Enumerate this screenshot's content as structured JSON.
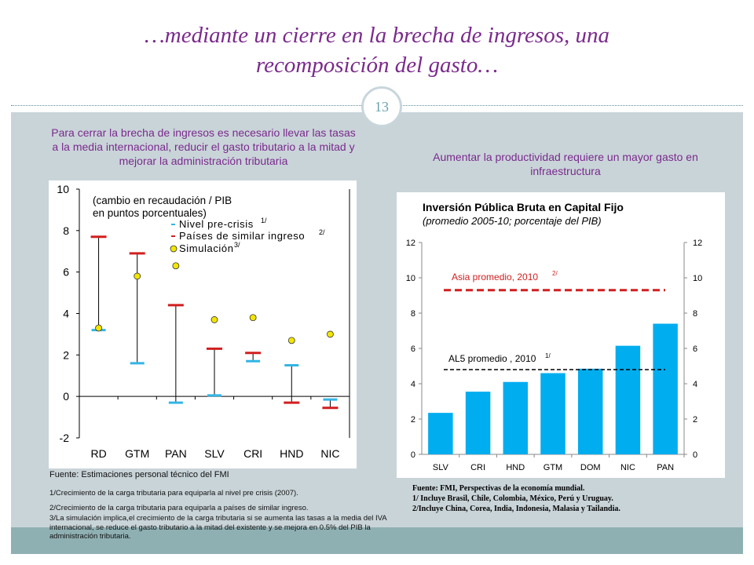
{
  "slide": {
    "title_line1": "…mediante un cierre en la brecha de ingresos, una",
    "title_line2": "recomposición del gasto…",
    "page_number": "13"
  },
  "left": {
    "subtitle": "Para cerrar la brecha de ingresos es necesario llevar las tasas a la media internacional, reducir el gasto tributario a la mitad y mejorar la administración tributaria",
    "source": "Fuente: Estimaciones personal técnico del FMI",
    "notes": [
      "1/Crecimiento de la carga tributaria para equiparla al nivel pre crisis (2007).",
      "2/Crecimiento de la carga tributaria para equiparla a países de similar ingreso.",
      "3/La simulación implica,el crecimiento de la carga tributaria si se aumenta las tasas a la media del IVA internacional, se reduce el gasto tributario a la mitad del existente y se mejora en 0.5% del PIB la administración tributaria."
    ]
  },
  "right": {
    "subtitle": "Aumentar la productividad requiere un mayor gasto en infraestructura",
    "source_lines": [
      "Fuente: FMI, Perspectivas de la economía mundial.",
      "1/ Incluye Brasil, Chile, Colombia, México, Perú y Uruguay.",
      "2/Incluye China, Corea, India, Indonesia, Malasia y Tailandia."
    ]
  },
  "colors": {
    "title": "#7a2a8c",
    "pre_crisis": "#33b5e5",
    "similar_income": "#d11f1f",
    "simulation": "#f2e500",
    "bar": "#00adef",
    "asia_line": "#d11f1f",
    "al5_line": "#000000"
  },
  "chart_data": [
    {
      "type": "scatter",
      "title": "(cambio en recaudación / PIB en puntos porcentuales)",
      "categories": [
        "RD",
        "GTM",
        "PAN",
        "SLV",
        "CRI",
        "HND",
        "NIC"
      ],
      "ylim": [
        -2,
        10
      ],
      "yticks": [
        "10",
        "8",
        "6",
        "4",
        "2",
        "0",
        "-2"
      ],
      "legend_position": "top-right",
      "series": [
        {
          "name": "Nivel pre-crisis",
          "note": "1/",
          "values": [
            3.2,
            1.6,
            -0.3,
            0.05,
            1.7,
            1.5,
            -0.15
          ]
        },
        {
          "name": "Países de similar ingreso",
          "note": "2/",
          "values": [
            7.7,
            6.9,
            4.4,
            2.3,
            2.1,
            -0.3,
            -0.55
          ]
        },
        {
          "name": "Simulación",
          "note": "3/",
          "values": [
            3.3,
            5.8,
            6.3,
            3.7,
            3.8,
            2.7,
            3.0
          ]
        }
      ]
    },
    {
      "type": "bar",
      "title": "Inversión Pública Bruta en Capital Fijo",
      "subtitle": "(promedio 2005-10; porcentaje del PIB)",
      "categories": [
        "SLV",
        "CRI",
        "HND",
        "GTM",
        "DOM",
        "NIC",
        "PAN"
      ],
      "values": [
        2.35,
        3.55,
        4.1,
        4.6,
        4.85,
        6.15,
        7.4
      ],
      "ylim": [
        0,
        12
      ],
      "yticks": [
        "12",
        "10",
        "8",
        "6",
        "4",
        "2",
        "0"
      ],
      "reference_lines": [
        {
          "label": "Asia promedio, 2010",
          "note": "2/",
          "value": 9.3
        },
        {
          "label": "AL5 promedio , 2010",
          "note": "1/",
          "value": 4.8
        }
      ]
    }
  ]
}
